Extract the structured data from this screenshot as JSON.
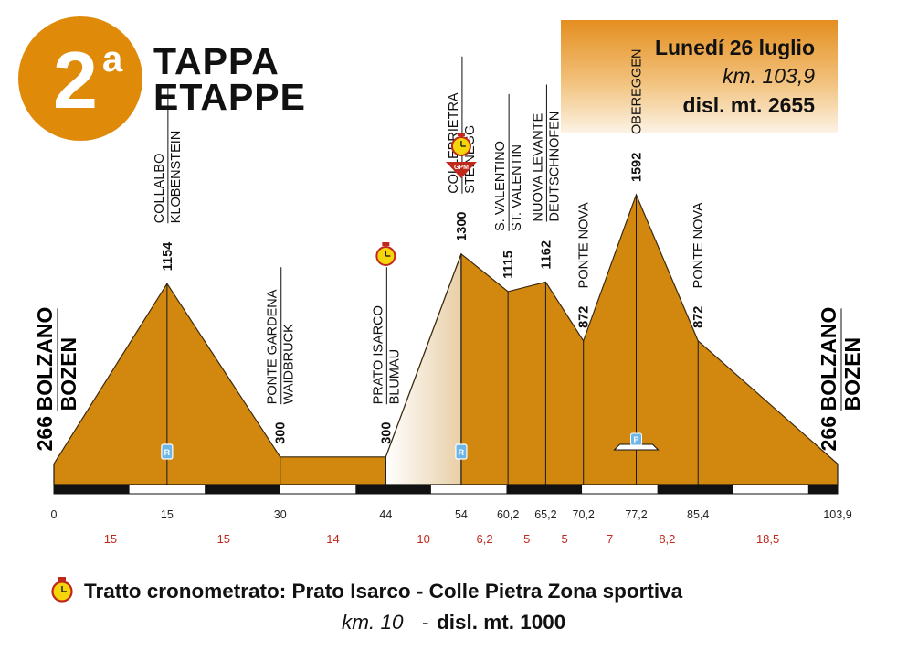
{
  "header": {
    "stage_number": "2",
    "stage_suffix": "a",
    "title_line1": "TAPPA",
    "title_line2": "ETAPPE"
  },
  "info_box": {
    "date": "Lunedí 26 luglio",
    "distance": "km. 103,9",
    "elevation": "disl. mt. 2655"
  },
  "colors": {
    "accent": "#e08a0a",
    "profile_fill": "#d2870f",
    "segment_red": "#c0281c",
    "box_top": "#e59022",
    "box_bottom": "#fbf1e1"
  },
  "profile": {
    "points": [
      {
        "km": 0,
        "alt": 266
      },
      {
        "km": 15,
        "alt": 1154
      },
      {
        "km": 30,
        "alt": 300
      },
      {
        "km": 44,
        "alt": 300
      },
      {
        "km": 54,
        "alt": 1300
      },
      {
        "km": 60.2,
        "alt": 1115
      },
      {
        "km": 65.2,
        "alt": 1162
      },
      {
        "km": 70.2,
        "alt": 872
      },
      {
        "km": 77.2,
        "alt": 1592
      },
      {
        "km": 85.4,
        "alt": 872
      },
      {
        "km": 103.9,
        "alt": 266
      }
    ],
    "timed_section_km": [
      44,
      54
    ]
  },
  "locations": [
    {
      "altitude": "266",
      "names": [
        "BOLZANO",
        "BOZEN"
      ],
      "style": "big"
    },
    {
      "altitude": "1154",
      "names": [
        "COLLALBO",
        "KLOBENSTEIN"
      ],
      "style": "normal"
    },
    {
      "altitude": "300",
      "names": [
        "PONTE GARDENA",
        "WAIDBRUCK"
      ],
      "style": "normal"
    },
    {
      "altitude": "300",
      "names": [
        "PRATO ISARCO",
        "BLUMAU"
      ],
      "style": "normal"
    },
    {
      "altitude": "1300",
      "names": [
        "COLLEPRIETRA",
        "STEINEGG"
      ],
      "style": "normal"
    },
    {
      "altitude": "1115",
      "names": [
        "S. VALENTINO",
        "ST. VALENTIN"
      ],
      "style": "normal"
    },
    {
      "altitude": "1162",
      "names": [
        "NUOVA LEVANTE",
        "DEUTSCHNOFEN"
      ],
      "style": "normal"
    },
    {
      "altitude": "872",
      "names": [
        "PONTE NOVA"
      ],
      "style": "normal"
    },
    {
      "altitude": "1592",
      "names": [
        "OBEREGGEN"
      ],
      "style": "normal"
    },
    {
      "altitude": "872",
      "names": [
        "PONTE NOVA"
      ],
      "style": "normal"
    },
    {
      "altitude": "266",
      "names": [
        "BOLZANO",
        "BOZEN"
      ],
      "style": "big"
    }
  ],
  "km_ticks": [
    "0",
    "15",
    "30",
    "44",
    "54",
    "60,2",
    "65,2",
    "70,2",
    "77,2",
    "85,4",
    "103,9"
  ],
  "segment_distances": [
    "15",
    "15",
    "14",
    "10",
    "6,2",
    "5",
    "5",
    "7",
    "8,2",
    "18,5"
  ],
  "markers": {
    "gpm_label": "GPM",
    "refreshment_label": "R",
    "parking_label": "P"
  },
  "footer": {
    "title": "Tratto cronometrato: Prato Isarco - Colle Pietra Zona sportiva",
    "km": "km. 10",
    "separator": "-",
    "elevation": "disl. mt. 1000"
  }
}
